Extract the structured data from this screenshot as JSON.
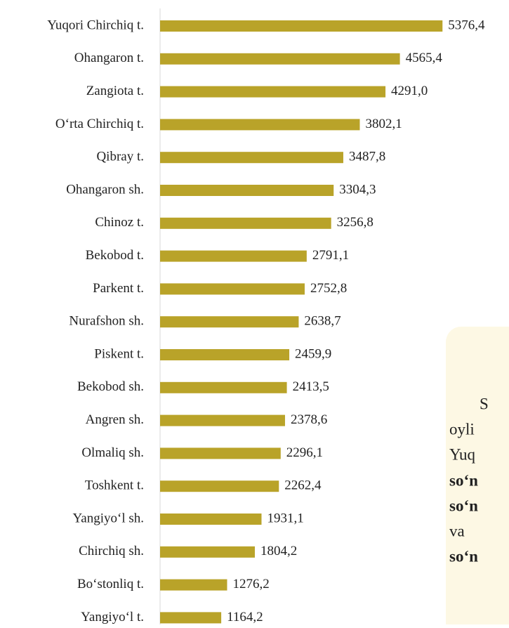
{
  "chart_data": {
    "type": "hbar",
    "categories": [
      "Yuqori Chirchiq t.",
      "Ohangaron t.",
      "Zangiota t.",
      "O‘rta Chirchiq t.",
      "Qibray t.",
      "Ohangaron sh.",
      "Chinoz t.",
      "Bekobod t.",
      "Parkent t.",
      "Nurafshon sh.",
      "Piskent t.",
      "Bekobod sh.",
      "Angren sh.",
      "Olmaliq sh.",
      "Toshkent t.",
      "Yangiyo‘l sh.",
      "Chirchiq sh.",
      "Bo‘stonliq t.",
      "Yangiyo‘l t."
    ],
    "values": [
      5376.4,
      4565.4,
      4291.0,
      3802.1,
      3487.8,
      3304.3,
      3256.8,
      2791.1,
      2752.8,
      2638.7,
      2459.9,
      2413.5,
      2378.6,
      2296.1,
      2262.4,
      1931.1,
      1804.2,
      1276.2,
      1164.2
    ],
    "value_labels": [
      "5376,4",
      "4565,4",
      "4291,0",
      "3802,1",
      "3487,8",
      "3304,3",
      "3256,8",
      "2791,1",
      "2752,8",
      "2638,7",
      "2459,9",
      "2413,5",
      "2378,6",
      "2296,1",
      "2262,4",
      "1931,1",
      "1804,2",
      "1276,2",
      "1164,2"
    ],
    "color": "#b9a329",
    "xlim": [
      0,
      5600
    ],
    "annotations": [
      "S",
      "oyli",
      "Yuq",
      "so‘n",
      "so‘n",
      "va",
      "so‘n"
    ]
  }
}
